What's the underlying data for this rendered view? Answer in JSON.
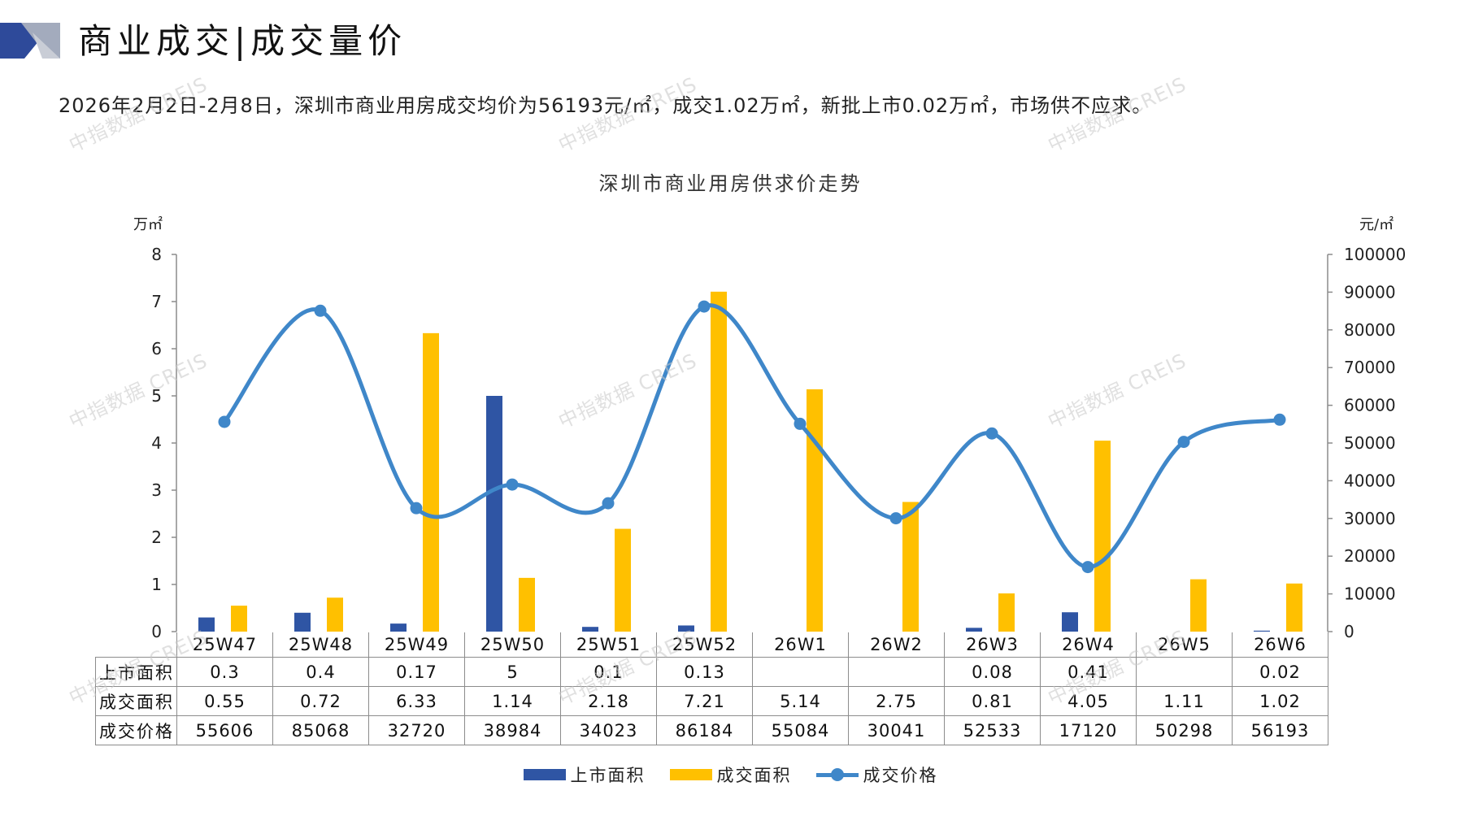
{
  "header": {
    "title": "商业成交|成交量价",
    "summary": "2026年2月2日-2月8日，深圳市商业用房成交均价为56193元/㎡，成交1.02万㎡，新批上市0.02万㎡，市场供不应求。",
    "accent_dark": "#2E4A9A",
    "accent_light": "#9AA3B8"
  },
  "watermark": "中指数据 CREIS",
  "chart_data": {
    "type": "bar+line",
    "title": "深圳市商业用房供求价走势",
    "y_left_label": "万㎡",
    "y_right_label": "元/㎡",
    "y_left_range": [
      0,
      8
    ],
    "y_left_ticks": [
      "0",
      "1",
      "2",
      "3",
      "4",
      "5",
      "6",
      "7",
      "8"
    ],
    "y_right_range": [
      0,
      100000
    ],
    "y_right_ticks": [
      "0",
      "10000",
      "20000",
      "30000",
      "40000",
      "50000",
      "60000",
      "70000",
      "80000",
      "90000",
      "100000"
    ],
    "categories": [
      "25W47",
      "25W48",
      "25W49",
      "25W50",
      "25W51",
      "25W52",
      "26W1",
      "26W2",
      "26W3",
      "26W4",
      "26W5",
      "26W6"
    ],
    "series": [
      {
        "name": "上市面积",
        "type": "bar",
        "axis": "left",
        "color": "#2F55A4",
        "values": [
          0.3,
          0.4,
          0.17,
          5,
          0.1,
          0.13,
          null,
          null,
          0.08,
          0.41,
          null,
          0.02
        ],
        "display": [
          "0.3",
          "0.4",
          "0.17",
          "5",
          "0.1",
          "0.13",
          "",
          "",
          "0.08",
          "0.41",
          "",
          "0.02"
        ]
      },
      {
        "name": "成交面积",
        "type": "bar",
        "axis": "left",
        "color": "#FFC000",
        "values": [
          0.55,
          0.72,
          6.33,
          1.14,
          2.18,
          7.21,
          5.14,
          2.75,
          0.81,
          4.05,
          1.11,
          1.02
        ],
        "display": [
          "0.55",
          "0.72",
          "6.33",
          "1.14",
          "2.18",
          "7.21",
          "5.14",
          "2.75",
          "0.81",
          "4.05",
          "1.11",
          "1.02"
        ]
      },
      {
        "name": "成交价格",
        "type": "line",
        "axis": "right",
        "color": "#3F87C9",
        "smooth": true,
        "values": [
          55606,
          85068,
          32720,
          38984,
          34023,
          86184,
          55084,
          30041,
          52533,
          17120,
          50298,
          56193
        ],
        "display": [
          "55606",
          "85068",
          "32720",
          "38984",
          "34023",
          "86184",
          "55084",
          "30041",
          "52533",
          "17120",
          "50298",
          "56193"
        ]
      }
    ],
    "table_rows": [
      "上市面积",
      "成交面积",
      "成交价格"
    ],
    "legend": [
      "上市面积",
      "成交面积",
      "成交价格"
    ],
    "legend_position": "bottom",
    "grid": false
  }
}
